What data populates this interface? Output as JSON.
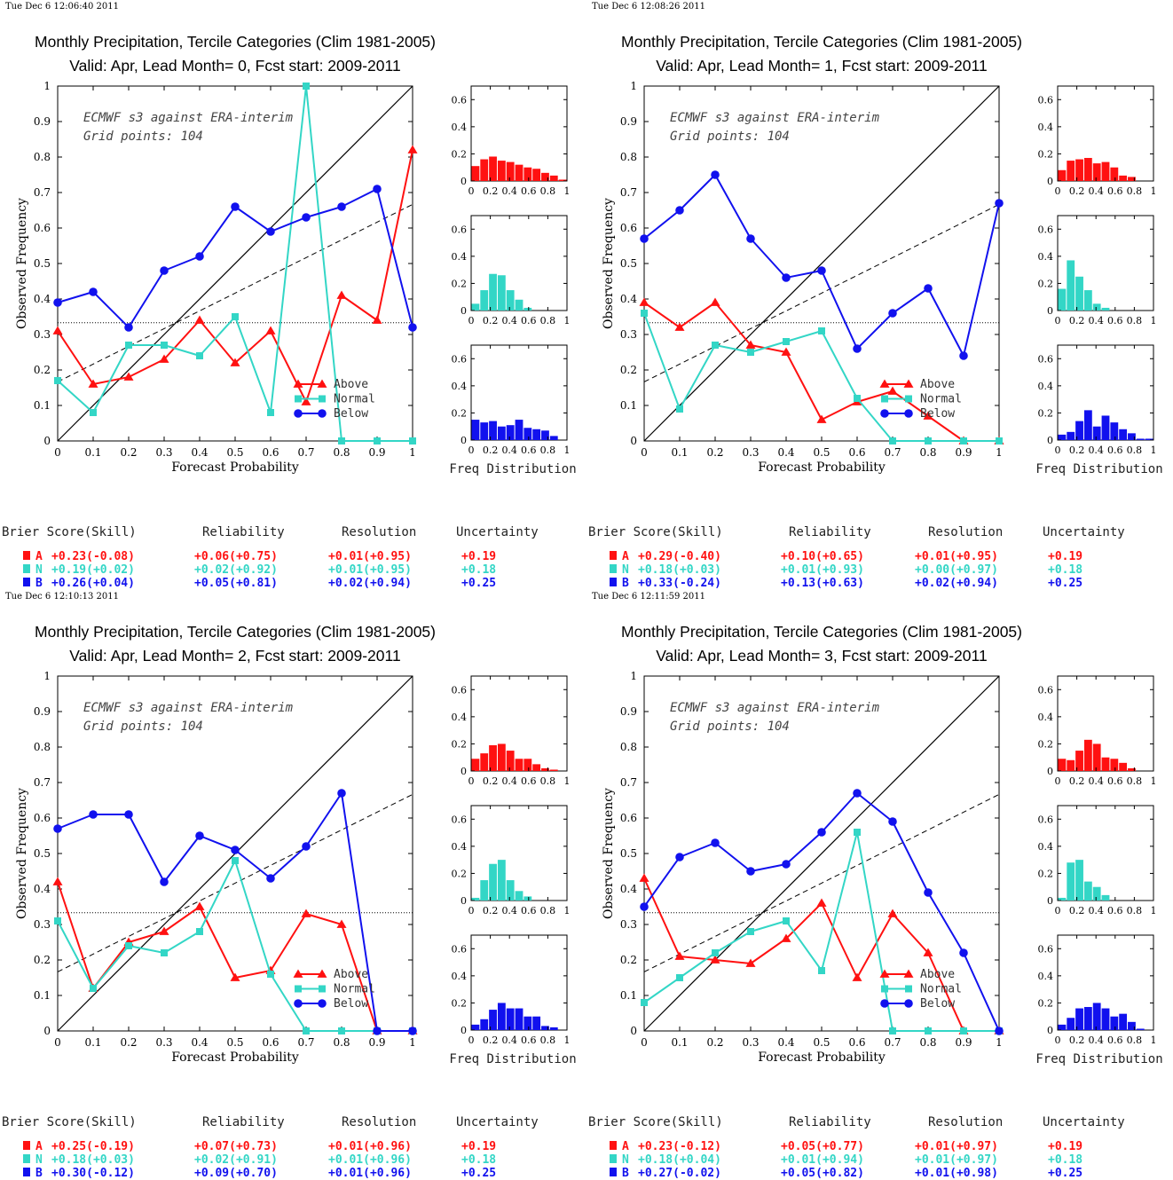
{
  "colors": {
    "above": "#ff1111",
    "normal": "#33d6c6",
    "below": "#1111ee"
  },
  "chart_data": [
    {
      "type": "line",
      "timestamp": "Tue Dec  6 12:06:40 2011",
      "title": "Monthly Precipitation, Tercile Categories (Clim 1981-2005)",
      "subtitle": "Valid: Apr, Lead Month= 0, Fcst start: 2009-2011",
      "xlabel": "Forecast Probability",
      "ylabel": "Observed Frequency",
      "note1": "ECMWF s3 against ERA-interim",
      "note2": "Grid points:  104",
      "xlim": [
        0,
        1
      ],
      "ylim": [
        0,
        1
      ],
      "x": [
        0,
        0.1,
        0.2,
        0.3,
        0.4,
        0.5,
        0.6,
        0.7,
        0.8,
        0.9,
        1
      ],
      "climatology": 0.333,
      "series": [
        {
          "name": "Above",
          "values": [
            0.31,
            0.16,
            0.18,
            0.23,
            0.34,
            0.22,
            0.31,
            0.11,
            0.41,
            0.34,
            0.82
          ]
        },
        {
          "name": "Normal",
          "values": [
            0.17,
            0.08,
            0.27,
            0.27,
            0.24,
            0.35,
            0.08,
            1.0,
            0.0,
            0.0,
            0.0
          ]
        },
        {
          "name": "Below",
          "values": [
            0.39,
            0.42,
            0.32,
            0.48,
            0.52,
            0.66,
            0.59,
            0.63,
            0.66,
            0.71,
            0.32
          ]
        }
      ],
      "hist_label": "Freq Distribution",
      "hist_ylim": [
        0,
        0.7
      ],
      "histograms": [
        [
          0.11,
          0.16,
          0.18,
          0.15,
          0.14,
          0.12,
          0.1,
          0.09,
          0.06,
          0.04,
          0.01
        ],
        [
          0.05,
          0.15,
          0.27,
          0.26,
          0.15,
          0.08,
          0.02,
          0.0,
          0.0,
          0.0,
          0.0
        ],
        [
          0.15,
          0.13,
          0.14,
          0.1,
          0.11,
          0.15,
          0.09,
          0.08,
          0.07,
          0.03,
          0.0
        ]
      ],
      "scores": {
        "headers": [
          "Brier Score(Skill)",
          "Reliability",
          "Resolution",
          "Uncertainty"
        ],
        "rows": [
          {
            "cat": "A",
            "brier": "+0.23(-0.08)",
            "rel": "+0.06(+0.75)",
            "res": "+0.01(+0.95)",
            "unc": "+0.19"
          },
          {
            "cat": "N",
            "brier": "+0.19(+0.02)",
            "rel": "+0.02(+0.92)",
            "res": "+0.01(+0.95)",
            "unc": "+0.18"
          },
          {
            "cat": "B",
            "brier": "+0.26(+0.04)",
            "rel": "+0.05(+0.81)",
            "res": "+0.02(+0.94)",
            "unc": "+0.25"
          }
        ]
      }
    },
    {
      "type": "line",
      "timestamp": "Tue Dec  6 12:08:26 2011",
      "title": "Monthly Precipitation, Tercile Categories (Clim 1981-2005)",
      "subtitle": "Valid: Apr, Lead Month= 1, Fcst start: 2009-2011",
      "xlabel": "Forecast Probability",
      "ylabel": "Observed Frequency",
      "note1": "ECMWF s3 against ERA-interim",
      "note2": "Grid points:  104",
      "xlim": [
        0,
        1
      ],
      "ylim": [
        0,
        1
      ],
      "x": [
        0,
        0.1,
        0.2,
        0.3,
        0.4,
        0.5,
        0.6,
        0.7,
        0.8,
        0.9,
        1
      ],
      "climatology": 0.333,
      "series": [
        {
          "name": "Above",
          "values": [
            0.39,
            0.32,
            0.39,
            0.27,
            0.25,
            0.06,
            0.11,
            0.14,
            0.07,
            0.0,
            0.0
          ]
        },
        {
          "name": "Normal",
          "values": [
            0.36,
            0.09,
            0.27,
            0.25,
            0.28,
            0.31,
            0.12,
            0.0,
            0.0,
            0.0,
            0.0
          ]
        },
        {
          "name": "Below",
          "values": [
            0.57,
            0.65,
            0.75,
            0.57,
            0.46,
            0.48,
            0.26,
            0.36,
            0.43,
            0.24,
            0.67
          ]
        }
      ],
      "hist_label": "Freq Distribution",
      "hist_ylim": [
        0,
        0.7
      ],
      "histograms": [
        [
          0.08,
          0.15,
          0.16,
          0.17,
          0.13,
          0.14,
          0.1,
          0.04,
          0.03,
          0.0,
          0.0
        ],
        [
          0.16,
          0.37,
          0.25,
          0.15,
          0.05,
          0.02,
          0.0,
          0.0,
          0.0,
          0.0,
          0.0
        ],
        [
          0.04,
          0.06,
          0.14,
          0.22,
          0.1,
          0.18,
          0.13,
          0.08,
          0.05,
          0.01,
          0.01
        ]
      ],
      "scores": {
        "headers": [
          "Brier Score(Skill)",
          "Reliability",
          "Resolution",
          "Uncertainty"
        ],
        "rows": [
          {
            "cat": "A",
            "brier": "+0.29(-0.40)",
            "rel": "+0.10(+0.65)",
            "res": "+0.01(+0.95)",
            "unc": "+0.19"
          },
          {
            "cat": "N",
            "brier": "+0.18(+0.03)",
            "rel": "+0.01(+0.93)",
            "res": "+0.00(+0.97)",
            "unc": "+0.18"
          },
          {
            "cat": "B",
            "brier": "+0.33(-0.24)",
            "rel": "+0.13(+0.63)",
            "res": "+0.02(+0.94)",
            "unc": "+0.25"
          }
        ]
      }
    },
    {
      "type": "line",
      "timestamp": "Tue Dec  6 12:10:13 2011",
      "title": "Monthly Precipitation, Tercile Categories (Clim 1981-2005)",
      "subtitle": "Valid: Apr, Lead Month= 2, Fcst start: 2009-2011",
      "xlabel": "Forecast Probability",
      "ylabel": "Observed Frequency",
      "note1": "ECMWF s3 against ERA-interim",
      "note2": "Grid points:  104",
      "xlim": [
        0,
        1
      ],
      "ylim": [
        0,
        1
      ],
      "x": [
        0,
        0.1,
        0.2,
        0.3,
        0.4,
        0.5,
        0.6,
        0.7,
        0.8,
        0.9,
        1
      ],
      "climatology": 0.333,
      "series": [
        {
          "name": "Above",
          "values": [
            0.42,
            0.12,
            0.25,
            0.28,
            0.35,
            0.15,
            0.17,
            0.33,
            0.3,
            0.0,
            0.0
          ]
        },
        {
          "name": "Normal",
          "values": [
            0.31,
            0.12,
            0.24,
            0.22,
            0.28,
            0.48,
            0.16,
            0.0,
            0.0,
            0.0,
            0.0
          ]
        },
        {
          "name": "Below",
          "values": [
            0.57,
            0.61,
            0.61,
            0.42,
            0.55,
            0.51,
            0.43,
            0.52,
            0.67,
            0.0,
            0.0
          ]
        }
      ],
      "hist_label": "Freq Distribution",
      "hist_ylim": [
        0,
        0.7
      ],
      "histograms": [
        [
          0.09,
          0.13,
          0.19,
          0.2,
          0.15,
          0.09,
          0.09,
          0.05,
          0.02,
          0.01,
          0.0
        ],
        [
          0.02,
          0.15,
          0.27,
          0.3,
          0.15,
          0.07,
          0.03,
          0.0,
          0.0,
          0.0,
          0.0
        ],
        [
          0.04,
          0.08,
          0.15,
          0.2,
          0.16,
          0.16,
          0.1,
          0.1,
          0.03,
          0.02,
          0.0
        ]
      ],
      "scores": {
        "headers": [
          "Brier Score(Skill)",
          "Reliability",
          "Resolution",
          "Uncertainty"
        ],
        "rows": [
          {
            "cat": "A",
            "brier": "+0.25(-0.19)",
            "rel": "+0.07(+0.73)",
            "res": "+0.01(+0.96)",
            "unc": "+0.19"
          },
          {
            "cat": "N",
            "brier": "+0.18(+0.03)",
            "rel": "+0.02(+0.91)",
            "res": "+0.01(+0.96)",
            "unc": "+0.18"
          },
          {
            "cat": "B",
            "brier": "+0.30(-0.12)",
            "rel": "+0.09(+0.70)",
            "res": "+0.01(+0.96)",
            "unc": "+0.25"
          }
        ]
      }
    },
    {
      "type": "line",
      "timestamp": "Tue Dec  6 12:11:59 2011",
      "title": "Monthly Precipitation, Tercile Categories (Clim 1981-2005)",
      "subtitle": "Valid: Apr, Lead Month= 3, Fcst start: 2009-2011",
      "xlabel": "Forecast Probability",
      "ylabel": "Observed Frequency",
      "note1": "ECMWF s3 against ERA-interim",
      "note2": "Grid points:  104",
      "xlim": [
        0,
        1
      ],
      "ylim": [
        0,
        1
      ],
      "x": [
        0,
        0.1,
        0.2,
        0.3,
        0.4,
        0.5,
        0.6,
        0.7,
        0.8,
        0.9,
        1
      ],
      "climatology": 0.333,
      "series": [
        {
          "name": "Above",
          "values": [
            0.43,
            0.21,
            0.2,
            0.19,
            0.26,
            0.36,
            0.15,
            0.33,
            0.22,
            0.0,
            0.0
          ]
        },
        {
          "name": "Normal",
          "values": [
            0.08,
            0.15,
            0.22,
            0.28,
            0.31,
            0.17,
            0.56,
            0.0,
            0.0,
            0.0,
            0.0
          ]
        },
        {
          "name": "Below",
          "values": [
            0.35,
            0.49,
            0.53,
            0.45,
            0.47,
            0.56,
            0.67,
            0.59,
            0.39,
            0.22,
            0.0
          ]
        }
      ],
      "hist_label": "Freq Distribution",
      "hist_ylim": [
        0,
        0.7
      ],
      "histograms": [
        [
          0.09,
          0.08,
          0.15,
          0.23,
          0.2,
          0.1,
          0.09,
          0.06,
          0.02,
          0.0,
          0.0
        ],
        [
          0.02,
          0.28,
          0.3,
          0.14,
          0.1,
          0.04,
          0.0,
          0.0,
          0.0,
          0.0,
          0.0
        ],
        [
          0.04,
          0.09,
          0.16,
          0.17,
          0.2,
          0.16,
          0.1,
          0.12,
          0.06,
          0.01,
          0.0
        ]
      ],
      "scores": {
        "headers": [
          "Brier Score(Skill)",
          "Reliability",
          "Resolution",
          "Uncertainty"
        ],
        "rows": [
          {
            "cat": "A",
            "brier": "+0.23(-0.12)",
            "rel": "+0.05(+0.77)",
            "res": "+0.01(+0.97)",
            "unc": "+0.19"
          },
          {
            "cat": "N",
            "brier": "+0.18(+0.04)",
            "rel": "+0.01(+0.94)",
            "res": "+0.01(+0.97)",
            "unc": "+0.18"
          },
          {
            "cat": "B",
            "brier": "+0.27(-0.02)",
            "rel": "+0.05(+0.82)",
            "res": "+0.01(+0.98)",
            "unc": "+0.25"
          }
        ]
      }
    }
  ]
}
